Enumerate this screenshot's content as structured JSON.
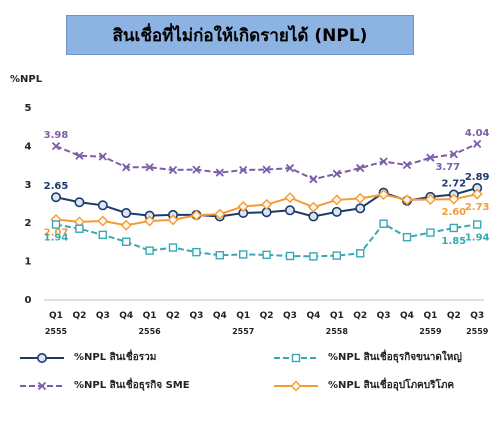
{
  "title": "สินเชื่อที่ไม่ก่อให้เกิดรายได้ (NPL)",
  "chart_data": {
    "type": "line",
    "ylabel": "%NPL",
    "ylim": [
      0,
      5
    ],
    "yticks": [
      "0",
      "1",
      "2",
      "3",
      "4",
      "5"
    ],
    "quarters": [
      "Q1",
      "Q2",
      "Q3",
      "Q4",
      "Q1",
      "Q2",
      "Q3",
      "Q4",
      "Q1",
      "Q2",
      "Q3",
      "Q4",
      "Q1",
      "Q2",
      "Q3",
      "Q4",
      "Q1",
      "Q2",
      "Q3"
    ],
    "years": [
      "2555",
      "2556",
      "2557",
      "2558",
      "2559",
      "2559"
    ],
    "series": [
      {
        "name": "%NPL สินเชื่อธุรกิจ SME",
        "color": "#7b5ea7",
        "marker": "x",
        "values": [
          3.98,
          3.73,
          3.71,
          3.43,
          3.43,
          3.36,
          3.37,
          3.29,
          3.36,
          3.37,
          3.41,
          3.12,
          3.26,
          3.41,
          3.58,
          3.49,
          3.68,
          3.77,
          4.04
        ]
      },
      {
        "name": "%NPL สินเชื่อรวม",
        "color": "#1f3a68",
        "marker": "circle",
        "values": [
          2.65,
          2.52,
          2.44,
          2.24,
          2.17,
          2.19,
          2.19,
          2.15,
          2.24,
          2.26,
          2.31,
          2.15,
          2.27,
          2.36,
          2.77,
          2.56,
          2.66,
          2.72,
          2.89
        ]
      },
      {
        "name": "%NPL สินเชื่ออุปโภคบริโภค",
        "color": "#f39c34",
        "marker": "diamond",
        "values": [
          2.07,
          2.01,
          2.03,
          1.92,
          2.03,
          2.06,
          2.18,
          2.21,
          2.41,
          2.46,
          2.64,
          2.39,
          2.58,
          2.62,
          2.72,
          2.58,
          2.59,
          2.6,
          2.73
        ]
      },
      {
        "name": "%NPL สินเชื่อธุรกิจขนาดใหญ่",
        "color": "#39a8b4",
        "marker": "square",
        "values": [
          1.94,
          1.83,
          1.67,
          1.49,
          1.26,
          1.34,
          1.22,
          1.14,
          1.16,
          1.15,
          1.12,
          1.11,
          1.13,
          1.19,
          1.96,
          1.61,
          1.73,
          1.85,
          1.94
        ]
      }
    ],
    "data_labels": [
      {
        "series": 0,
        "index": 0,
        "text": "3.98",
        "pos": "above"
      },
      {
        "series": 0,
        "index": 17,
        "text": "3.77",
        "pos": "below-left"
      },
      {
        "series": 0,
        "index": 18,
        "text": "4.04",
        "pos": "above"
      },
      {
        "series": 1,
        "index": 0,
        "text": "2.65",
        "pos": "above"
      },
      {
        "series": 1,
        "index": 17,
        "text": "2.72",
        "pos": "above"
      },
      {
        "series": 1,
        "index": 18,
        "text": "2.89",
        "pos": "above"
      },
      {
        "series": 2,
        "index": 0,
        "text": "2.07",
        "pos": "below"
      },
      {
        "series": 2,
        "index": 17,
        "text": "2.60",
        "pos": "below"
      },
      {
        "series": 2,
        "index": 18,
        "text": "2.73",
        "pos": "below"
      },
      {
        "series": 3,
        "index": 0,
        "text": "1.94",
        "pos": "below"
      },
      {
        "series": 3,
        "index": 17,
        "text": "1.85",
        "pos": "below"
      },
      {
        "series": 3,
        "index": 18,
        "text": "1.94",
        "pos": "below"
      }
    ],
    "legend": [
      {
        "series": 1,
        "label": "%NPL สินเชื่อรวม"
      },
      {
        "series": 3,
        "label": "%NPL สินเชื่อธุรกิจขนาดใหญ่"
      },
      {
        "series": 0,
        "label": "%NPL สินเชื่อธุรกิจ SME"
      },
      {
        "series": 2,
        "label": "%NPL สินเชื่ออุปโภคบริโภค"
      }
    ],
    "legend_position": "bottom",
    "grid": false
  }
}
